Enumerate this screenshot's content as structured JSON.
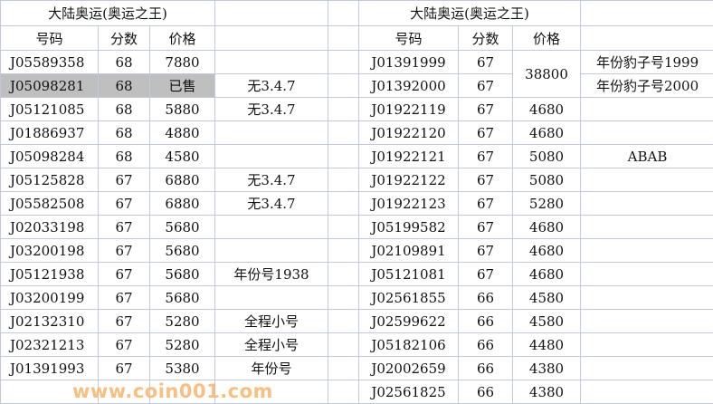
{
  "left": {
    "title": "大陆奥运(奥运之王)",
    "headers": [
      "号码",
      "分数",
      "价格"
    ],
    "rows": [
      {
        "code": "J05589358",
        "score": "68",
        "price": "7880",
        "note": ""
      },
      {
        "code": "J05098281",
        "score": "68",
        "price": "已售",
        "note": "无3.4.7"
      },
      {
        "code": "J05121085",
        "score": "68",
        "price": "5880",
        "note": "无3.4.7"
      },
      {
        "code": "J01886937",
        "score": "68",
        "price": "4880",
        "note": ""
      },
      {
        "code": "J05098284",
        "score": "68",
        "price": "4580",
        "note": ""
      },
      {
        "code": "J05125828",
        "score": "67",
        "price": "6880",
        "note": "无3.4.7"
      },
      {
        "code": "J05582508",
        "score": "67",
        "price": "6880",
        "note": "无3.4.7"
      },
      {
        "code": "J02033198",
        "score": "67",
        "price": "5680",
        "note": ""
      },
      {
        "code": "J03200198",
        "score": "67",
        "price": "5680",
        "note": ""
      },
      {
        "code": "J05121938",
        "score": "67",
        "price": "5680",
        "note": "年份号1938"
      },
      {
        "code": "J03200199",
        "score": "67",
        "price": "5680",
        "note": ""
      },
      {
        "code": "J02132310",
        "score": "67",
        "price": "5280",
        "note": "全程小号"
      },
      {
        "code": "J02321213",
        "score": "67",
        "price": "5280",
        "note": "全程小号"
      },
      {
        "code": "J01391993",
        "score": "67",
        "price": "5380",
        "note": "年份号"
      }
    ]
  },
  "right": {
    "title": "大陆奥运(奥运之王)",
    "headers": [
      "号码",
      "分数",
      "价格"
    ],
    "merged_price": "38800",
    "rows": [
      {
        "code": "J01391999",
        "score": "67",
        "price": "",
        "note": "年份豹子号1999"
      },
      {
        "code": "J01392000",
        "score": "67",
        "price": "",
        "note": "年份豹子号2000"
      },
      {
        "code": "J01922119",
        "score": "67",
        "price": "4680",
        "note": ""
      },
      {
        "code": "J01922120",
        "score": "67",
        "price": "4680",
        "note": ""
      },
      {
        "code": "J01922121",
        "score": "67",
        "price": "5080",
        "note": "ABAB"
      },
      {
        "code": "J01922122",
        "score": "67",
        "price": "5080",
        "note": ""
      },
      {
        "code": "J01922123",
        "score": "67",
        "price": "5280",
        "note": ""
      },
      {
        "code": "J05199582",
        "score": "67",
        "price": "4680",
        "note": ""
      },
      {
        "code": "J02109891",
        "score": "67",
        "price": "4680",
        "note": ""
      },
      {
        "code": "J05121081",
        "score": "67",
        "price": "4680",
        "note": ""
      },
      {
        "code": "J02561855",
        "score": "66",
        "price": "4580",
        "note": ""
      },
      {
        "code": "J02599622",
        "score": "66",
        "price": "4580",
        "note": ""
      },
      {
        "code": "J05182106",
        "score": "66",
        "price": "4480",
        "note": ""
      },
      {
        "code": "J02002659",
        "score": "66",
        "price": "4380",
        "note": ""
      },
      {
        "code": "J02561825",
        "score": "66",
        "price": "4380",
        "note": ""
      }
    ]
  },
  "watermark": "www.coin001.com",
  "colors": {
    "grid": "#c3c8da",
    "sold_fill": "#bfbfbf",
    "watermark": "#f7b46c"
  }
}
